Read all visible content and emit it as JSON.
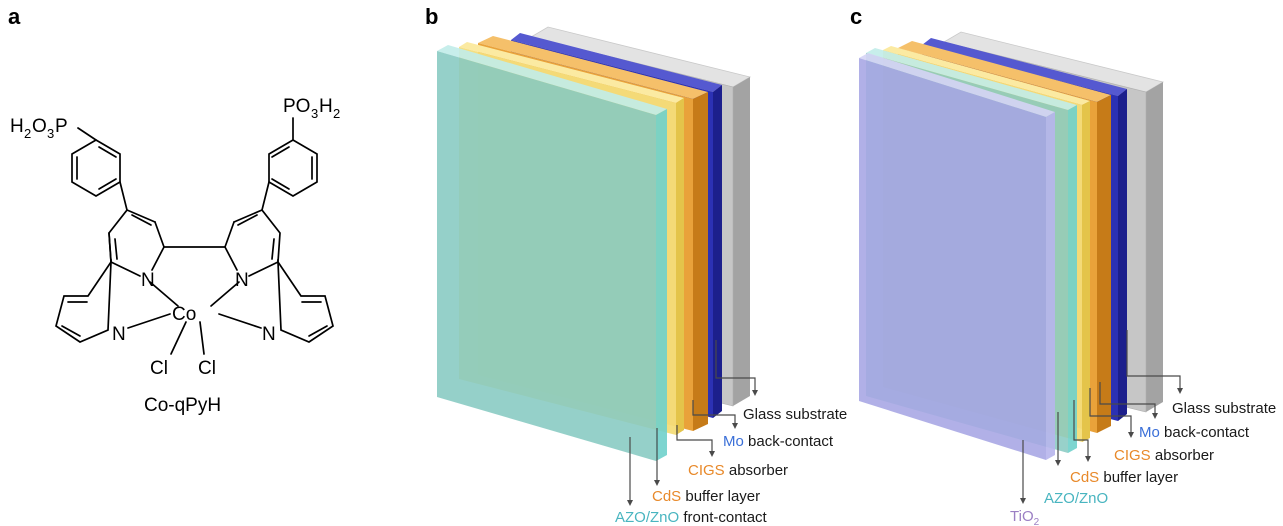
{
  "panels": {
    "a": {
      "letter": "a",
      "compound_name": "Co-qPyH"
    },
    "b": {
      "letter": "b"
    },
    "c": {
      "letter": "c"
    }
  },
  "molecule": {
    "left_group": {
      "h": "H",
      "h_sub": "2",
      "o": "O",
      "o_sub": "3",
      "p": "P"
    },
    "right_group": {
      "p": "PO",
      "o_sub": "3",
      "h": "H",
      "h_sub": "2"
    },
    "atoms": {
      "N": "N",
      "Co": "Co",
      "Cl": "Cl"
    }
  },
  "device_b": {
    "labels": [
      {
        "name": "glass",
        "colored": "",
        "rest": "Glass substrate",
        "color": "#1a1a1a"
      },
      {
        "name": "mo",
        "colored": "Mo",
        "rest": " back-contact",
        "color": "#3a6fd8"
      },
      {
        "name": "cigs",
        "colored": "CIGS",
        "rest": " absorber",
        "color": "#e8892a"
      },
      {
        "name": "cds",
        "colored": "CdS",
        "rest": " buffer layer",
        "color": "#e8892a"
      },
      {
        "name": "azo",
        "colored": "AZO/ZnO",
        "rest": " front-contact",
        "color": "#49b5c0"
      }
    ]
  },
  "device_c": {
    "labels": [
      {
        "name": "glass",
        "colored": "",
        "rest": "Glass substrate",
        "color": "#1a1a1a"
      },
      {
        "name": "mo",
        "colored": "Mo",
        "rest": " back-contact",
        "color": "#3a6fd8"
      },
      {
        "name": "cigs",
        "colored": "CIGS",
        "rest": " absorber",
        "color": "#e8892a"
      },
      {
        "name": "cds",
        "colored": "CdS",
        "rest": " buffer layer",
        "color": "#e8892a"
      },
      {
        "name": "azo",
        "colored": "AZO/ZnO",
        "rest": "",
        "color": "#49b5c0"
      },
      {
        "name": "tio2",
        "colored": "TiO",
        "sub": "2",
        "rest": "",
        "color": "#9b7fc4"
      }
    ]
  },
  "colors": {
    "glass": "#b9b9b9",
    "mo": "#2a2fa8",
    "cigs": "#e39a2b",
    "cds": "#f1d75a",
    "azo": "#79cfc9",
    "tio2": "#a9a8e6"
  }
}
